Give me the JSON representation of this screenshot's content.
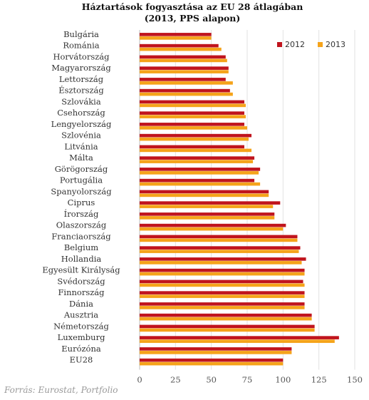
{
  "chart_data": {
    "type": "bar",
    "orientation": "horizontal",
    "title": "Háztartások fogyasztása az EU 28 átlagában",
    "subtitle": "(2013, PPS alapon)",
    "categories": [
      "Bulgária",
      "Románia",
      "Horvátország",
      "Magyarország",
      "Lettország",
      "Észtország",
      "Szlovákia",
      "Csehország",
      "Lengyelország",
      "Szlovénia",
      "Litvánia",
      "Málta",
      "Görögország",
      "Portugália",
      "Spanyolország",
      "Ciprus",
      "Írország",
      "Olaszország",
      "Franciaország",
      "Belgium",
      "Hollandia",
      "Egyesült Királyság",
      "Svédország",
      "Finnország",
      "Dánia",
      "Ausztria",
      "Németország",
      "Luxemburg",
      "Eurózóna",
      "EU28"
    ],
    "series": [
      {
        "name": "2012",
        "color": "#c0141d",
        "values": [
          50,
          55,
          60,
          62,
          60,
          63,
          73,
          73,
          73,
          78,
          73,
          80,
          84,
          80,
          90,
          98,
          94,
          102,
          110,
          112,
          116,
          115,
          114,
          115,
          115,
          120,
          122,
          139,
          106,
          100
        ]
      },
      {
        "name": "2013",
        "color": "#f5a31a",
        "values": [
          50,
          57,
          61,
          62,
          65,
          65,
          74,
          74,
          75,
          76,
          78,
          79,
          83,
          84,
          90,
          93,
          94,
          100,
          110,
          111,
          113,
          115,
          115,
          115,
          115,
          120,
          122,
          136,
          106,
          100
        ]
      }
    ],
    "xlim": [
      0,
      150
    ],
    "xticks": [
      0,
      25,
      50,
      75,
      100,
      125,
      150
    ],
    "grid": true,
    "legend": "top-right"
  },
  "source": "Forrás: Eurostat, Portfolio"
}
